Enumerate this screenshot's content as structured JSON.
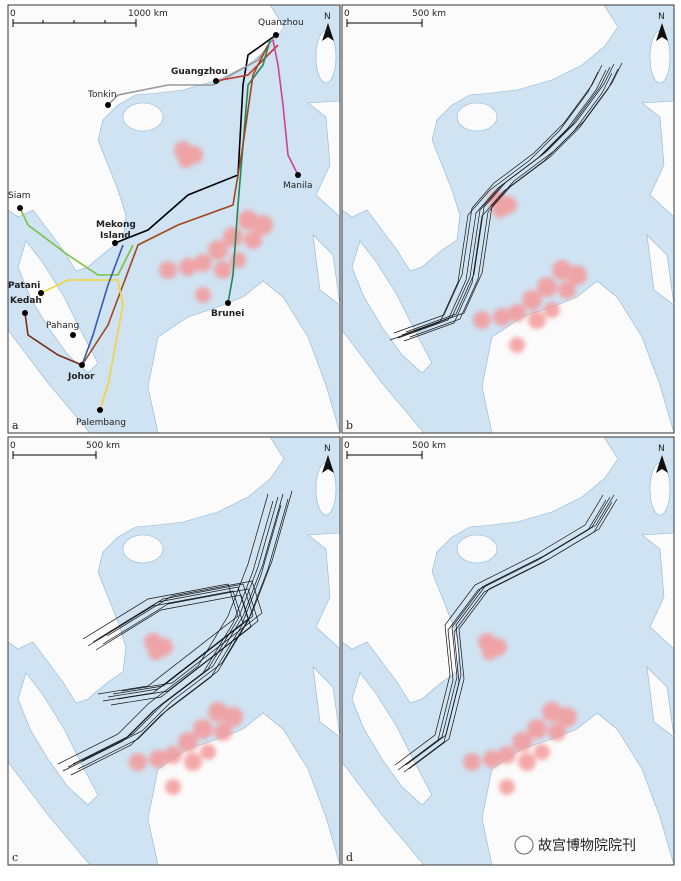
{
  "panels": [
    {
      "label": "a",
      "scale": {
        "start": "0",
        "end": "1000 km"
      },
      "north": "N",
      "places": [
        "Quanzhou",
        "Guangzhou",
        "Tonkin",
        "Manila",
        "Siam",
        "Mekong",
        "Island",
        "Patani",
        "Kedah",
        "Pahang",
        "Johor",
        "Brunei",
        "Palembang"
      ]
    },
    {
      "label": "b",
      "scale": {
        "start": "0",
        "end": "500 km"
      },
      "north": "N"
    },
    {
      "label": "c",
      "scale": {
        "start": "0",
        "end": "500 km"
      },
      "north": "N"
    },
    {
      "label": "d",
      "scale": {
        "start": "0",
        "end": "500 km"
      },
      "north": "N"
    }
  ],
  "watermark": "故宫博物院院刊"
}
